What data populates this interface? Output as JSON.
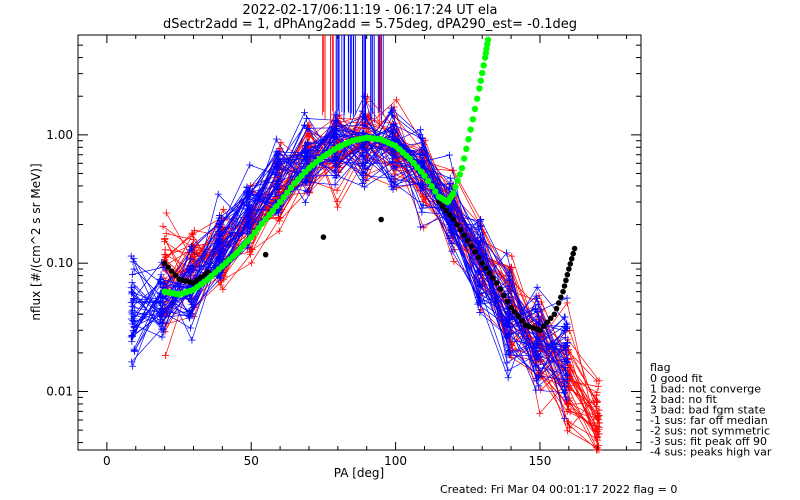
{
  "chart_data": {
    "type": "line",
    "title_line1": "2022-02-17/06:11:19 - 06:17:24 UT ela",
    "title_line2": "dSectr2add = 1, dPhAng2add = 5.75deg, dPA290_est=  -0.1deg",
    "xlabel": "PA [deg]",
    "ylabel": "nflux [#/(cm^2 s sr MeV)]",
    "xlim": [
      -10,
      185
    ],
    "ylim": [
      0.0035,
      6.0
    ],
    "yscale": "log",
    "grid": false,
    "x_ticks": [
      0,
      50,
      100,
      150
    ],
    "x_tick_labels": [
      "0",
      "50",
      "100",
      "150"
    ],
    "y_ticks": [
      0.01,
      0.1,
      1.0
    ],
    "y_tick_labels": [
      "0.01",
      "0.10",
      "1.00"
    ],
    "colors": {
      "red": "#ff0000",
      "blue": "#0000ff",
      "green": "#00ff00",
      "black": "#000000"
    },
    "red_pa": [
      20,
      30,
      40,
      50,
      60,
      70,
      80,
      90,
      100,
      110,
      120,
      130,
      140,
      150,
      160,
      170
    ],
    "red_center": [
      0.075,
      0.09,
      0.13,
      0.2,
      0.35,
      0.55,
      0.8,
      0.9,
      0.75,
      0.45,
      0.22,
      0.1,
      0.045,
      0.022,
      0.012,
      0.007
    ],
    "blue_pa": [
      9,
      19,
      29,
      39,
      49,
      59,
      69,
      79,
      89,
      99,
      109,
      119,
      129,
      139,
      149,
      159
    ],
    "blue_center": [
      0.04,
      0.05,
      0.06,
      0.13,
      0.25,
      0.45,
      0.7,
      0.85,
      0.9,
      0.75,
      0.5,
      0.25,
      0.1,
      0.04,
      0.025,
      0.02
    ],
    "green_fit": {
      "x": [
        20,
        25,
        30,
        35,
        40,
        45,
        50,
        55,
        60,
        65,
        70,
        75,
        80,
        85,
        90,
        95,
        100,
        105,
        110,
        115,
        118,
        120,
        123,
        126,
        129,
        131,
        132
      ],
      "y": [
        0.06,
        0.057,
        0.062,
        0.075,
        0.095,
        0.12,
        0.16,
        0.22,
        0.3,
        0.42,
        0.55,
        0.68,
        0.8,
        0.9,
        0.95,
        0.92,
        0.82,
        0.65,
        0.48,
        0.33,
        0.3,
        0.35,
        0.55,
        1.1,
        2.3,
        4.0,
        5.5
      ]
    },
    "black_fit": {
      "x": [
        20,
        25,
        30,
        35,
        115,
        120,
        125,
        130,
        135,
        140,
        145,
        150,
        155,
        158,
        160,
        162
      ],
      "y": [
        0.1,
        0.075,
        0.07,
        0.085,
        0.3,
        0.22,
        0.15,
        0.1,
        0.07,
        0.045,
        0.033,
        0.03,
        0.04,
        0.06,
        0.09,
        0.13
      ]
    },
    "spikes_x": [
      75,
      78,
      80,
      82,
      84,
      86,
      88,
      90,
      92,
      94,
      95
    ],
    "legend": {
      "title": "flag",
      "items": [
        " 0 good fit",
        " 1 bad: not converge",
        " 2 bad: no fit",
        " 3 bad: bad fgm state",
        "-1 sus: far off median",
        "-2 sus: not symmetric",
        "-3 sus: fit peak off 90",
        "-4 sus: peaks high var"
      ]
    },
    "footer": "Created: Fri Mar 04 00:01:17 2022   flag = 0"
  }
}
